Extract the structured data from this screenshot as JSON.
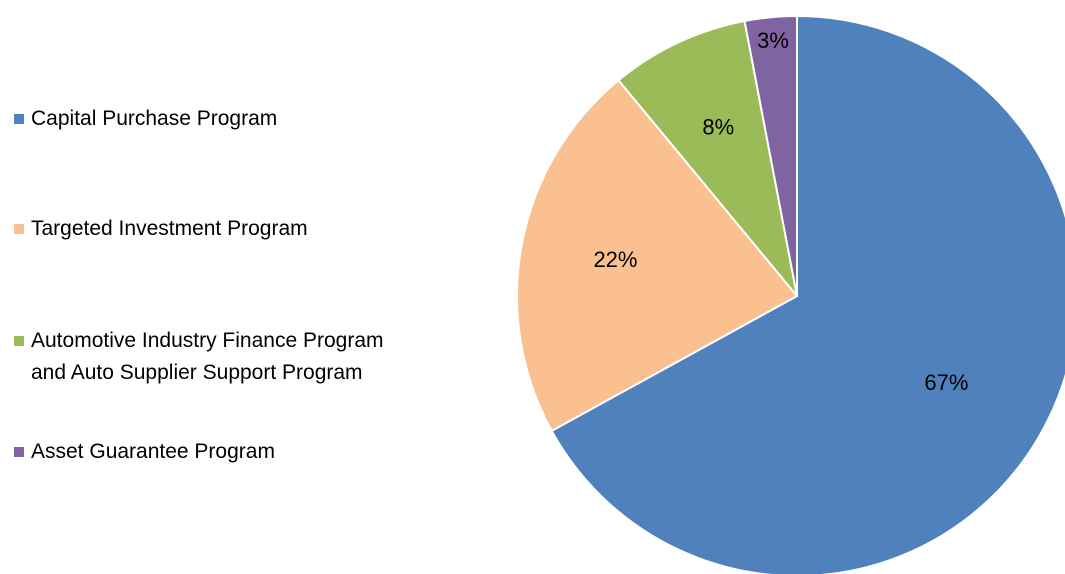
{
  "chart_data": {
    "type": "pie",
    "categories": [
      "Capital Purchase Program",
      "Targeted Investment Program",
      "Automotive Industry Finance Program\nand Auto Supplier Support Program",
      "Asset Guarantee Program"
    ],
    "values": [
      67,
      22,
      8,
      3
    ],
    "value_labels": [
      "67%",
      "22%",
      "8%",
      "3%"
    ],
    "colors": [
      "#4f81bd",
      "#fac090",
      "#9bbb59",
      "#8064a2"
    ],
    "legend": "left"
  }
}
